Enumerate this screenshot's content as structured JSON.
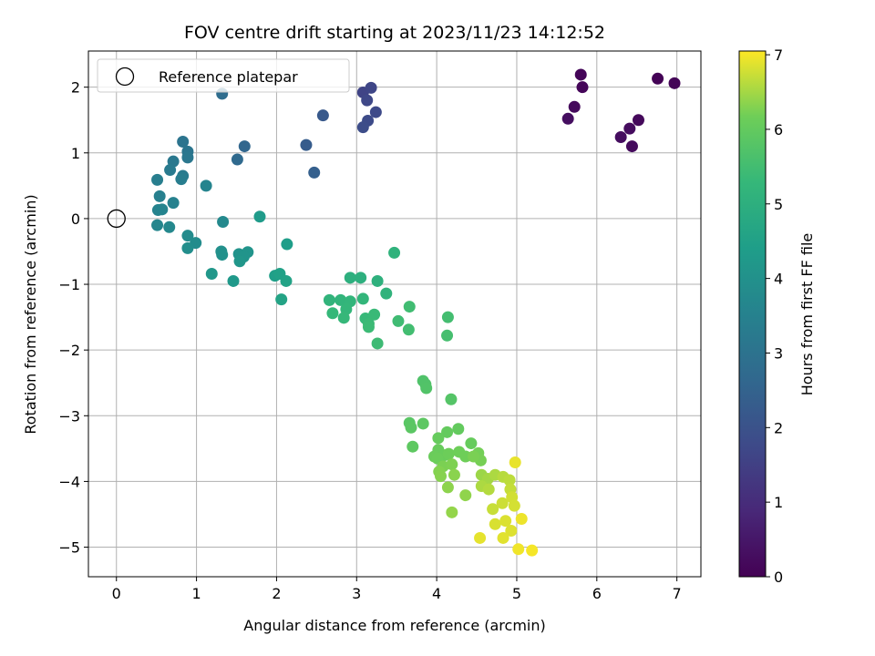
{
  "chart_data": {
    "type": "scatter",
    "title": "FOV centre drift starting at 2023/11/23 14:12:52",
    "xlabel": "Angular distance from reference (arcmin)",
    "ylabel": "Rotation from reference (arcmin)",
    "xlim": [
      -0.35,
      7.3
    ],
    "ylim": [
      -5.45,
      2.55
    ],
    "xticks": [
      0,
      1,
      2,
      3,
      4,
      5,
      6,
      7
    ],
    "yticks": [
      2,
      1,
      0,
      -1,
      -2,
      -3,
      -4,
      -5
    ],
    "xtick_labels": [
      "0",
      "1",
      "2",
      "3",
      "4",
      "5",
      "6",
      "7"
    ],
    "ytick_labels": [
      "2",
      "1",
      "0",
      "−1",
      "−2",
      "−3",
      "−4",
      "−5"
    ],
    "grid": true,
    "legend": {
      "location": "upper left",
      "label": "Reference platepar",
      "marker": "open-circle"
    },
    "reference_point": {
      "x": 0,
      "y": 0
    },
    "colorbar": {
      "label": "Hours from first FF file",
      "min": 0,
      "max": 7.05,
      "ticks": [
        0,
        1,
        2,
        3,
        4,
        5,
        6,
        7
      ],
      "tick_labels": [
        "0",
        "1",
        "2",
        "3",
        "4",
        "5",
        "6",
        "7"
      ],
      "colormap": "viridis"
    },
    "points": [
      [
        5.8,
        2.19,
        0.1
      ],
      [
        5.82,
        2.0,
        0.12
      ],
      [
        5.72,
        1.7,
        0.2
      ],
      [
        5.64,
        1.52,
        0.3
      ],
      [
        6.76,
        2.13,
        0.05
      ],
      [
        6.97,
        2.06,
        0.08
      ],
      [
        6.52,
        1.5,
        0.18
      ],
      [
        6.41,
        1.37,
        0.25
      ],
      [
        6.3,
        1.24,
        0.28
      ],
      [
        6.44,
        1.1,
        0.22
      ],
      [
        3.08,
        1.92,
        1.6
      ],
      [
        3.18,
        1.99,
        1.65
      ],
      [
        3.13,
        1.8,
        1.7
      ],
      [
        3.24,
        1.62,
        1.75
      ],
      [
        3.14,
        1.49,
        1.8
      ],
      [
        3.08,
        1.39,
        1.85
      ],
      [
        2.58,
        1.57,
        2.2
      ],
      [
        2.37,
        1.12,
        2.3
      ],
      [
        2.47,
        0.7,
        2.4
      ],
      [
        1.6,
        1.1,
        2.6
      ],
      [
        1.51,
        0.9,
        2.7
      ],
      [
        1.32,
        1.9,
        2.8
      ],
      [
        0.83,
        1.17,
        3.05
      ],
      [
        0.89,
        1.02,
        3.1
      ],
      [
        0.89,
        0.93,
        3.15
      ],
      [
        0.71,
        0.87,
        3.2
      ],
      [
        0.67,
        0.74,
        3.25
      ],
      [
        0.83,
        0.65,
        3.3
      ],
      [
        0.81,
        0.6,
        3.35
      ],
      [
        0.51,
        0.59,
        3.4
      ],
      [
        0.54,
        0.34,
        3.45
      ],
      [
        0.71,
        0.24,
        3.5
      ],
      [
        0.52,
        0.13,
        3.55
      ],
      [
        0.57,
        0.14,
        3.6
      ],
      [
        0.51,
        -0.1,
        3.65
      ],
      [
        0.66,
        -0.13,
        3.7
      ],
      [
        1.12,
        0.5,
        3.6
      ],
      [
        1.33,
        -0.05,
        3.75
      ],
      [
        0.89,
        -0.26,
        3.8
      ],
      [
        0.99,
        -0.37,
        3.85
      ],
      [
        0.89,
        -0.45,
        3.9
      ],
      [
        1.31,
        -0.5,
        3.95
      ],
      [
        1.32,
        -0.55,
        4.0
      ],
      [
        1.53,
        -0.54,
        4.05
      ],
      [
        1.64,
        -0.51,
        4.1
      ],
      [
        1.59,
        -0.58,
        4.1
      ],
      [
        1.54,
        -0.65,
        4.15
      ],
      [
        1.19,
        -0.84,
        4.2
      ],
      [
        1.46,
        -0.95,
        4.25
      ],
      [
        1.79,
        0.03,
        4.3
      ],
      [
        2.13,
        -0.39,
        4.4
      ],
      [
        1.98,
        -0.87,
        4.45
      ],
      [
        2.04,
        -0.84,
        4.5
      ],
      [
        2.12,
        -0.95,
        4.55
      ],
      [
        2.06,
        -1.23,
        4.6
      ],
      [
        2.92,
        -0.9,
        5.0
      ],
      [
        3.05,
        -0.9,
        5.02
      ],
      [
        3.26,
        -0.95,
        5.05
      ],
      [
        3.47,
        -0.52,
        5.1
      ],
      [
        3.37,
        -1.14,
        5.12
      ],
      [
        2.66,
        -1.24,
        5.15
      ],
      [
        2.8,
        -1.24,
        5.18
      ],
      [
        2.92,
        -1.26,
        5.2
      ],
      [
        3.08,
        -1.22,
        5.22
      ],
      [
        2.87,
        -1.38,
        5.25
      ],
      [
        2.7,
        -1.44,
        5.28
      ],
      [
        2.84,
        -1.51,
        5.3
      ],
      [
        3.11,
        -1.52,
        5.32
      ],
      [
        3.22,
        -1.46,
        5.35
      ],
      [
        3.15,
        -1.6,
        5.38
      ],
      [
        3.15,
        -1.65,
        5.4
      ],
      [
        3.26,
        -1.9,
        5.42
      ],
      [
        3.52,
        -1.56,
        5.45
      ],
      [
        3.66,
        -1.34,
        5.48
      ],
      [
        3.65,
        -1.69,
        5.5
      ],
      [
        4.14,
        -1.5,
        5.52
      ],
      [
        4.13,
        -1.78,
        5.55
      ],
      [
        3.83,
        -2.47,
        5.7
      ],
      [
        3.86,
        -2.52,
        5.72
      ],
      [
        3.87,
        -2.58,
        5.74
      ],
      [
        4.18,
        -2.75,
        5.78
      ],
      [
        3.66,
        -3.11,
        5.85
      ],
      [
        3.68,
        -3.18,
        5.87
      ],
      [
        3.83,
        -3.12,
        5.9
      ],
      [
        3.7,
        -3.47,
        5.92
      ],
      [
        4.27,
        -3.2,
        6.0
      ],
      [
        4.13,
        -3.25,
        6.02
      ],
      [
        4.02,
        -3.34,
        6.04
      ],
      [
        4.43,
        -3.42,
        6.05
      ],
      [
        4.02,
        -3.52,
        6.07
      ],
      [
        4.1,
        -3.6,
        6.08
      ],
      [
        3.97,
        -3.62,
        6.1
      ],
      [
        4.01,
        -3.65,
        6.12
      ],
      [
        4.15,
        -3.58,
        6.14
      ],
      [
        4.28,
        -3.55,
        6.15
      ],
      [
        4.36,
        -3.62,
        6.17
      ],
      [
        4.52,
        -3.57,
        6.2
      ],
      [
        4.55,
        -3.68,
        6.22
      ],
      [
        4.46,
        -3.62,
        6.24
      ],
      [
        4.08,
        -3.77,
        6.25
      ],
      [
        4.19,
        -3.74,
        6.27
      ],
      [
        4.03,
        -3.85,
        6.3
      ],
      [
        4.05,
        -3.92,
        6.32
      ],
      [
        4.22,
        -3.9,
        6.34
      ],
      [
        4.14,
        -4.09,
        6.36
      ],
      [
        4.36,
        -4.21,
        6.38
      ],
      [
        4.19,
        -4.47,
        6.4
      ],
      [
        4.56,
        -3.9,
        6.45
      ],
      [
        4.64,
        -3.96,
        6.5
      ],
      [
        4.73,
        -3.9,
        6.55
      ],
      [
        4.56,
        -4.07,
        6.55
      ],
      [
        4.65,
        -4.12,
        6.6
      ],
      [
        4.83,
        -3.93,
        6.62
      ],
      [
        4.91,
        -3.98,
        6.65
      ],
      [
        4.92,
        -4.12,
        6.7
      ],
      [
        4.7,
        -4.42,
        6.72
      ],
      [
        4.82,
        -4.33,
        6.75
      ],
      [
        4.94,
        -4.24,
        6.78
      ],
      [
        4.97,
        -4.37,
        6.8
      ],
      [
        4.73,
        -4.65,
        6.82
      ],
      [
        4.86,
        -4.6,
        6.84
      ],
      [
        4.93,
        -4.75,
        6.85
      ],
      [
        4.83,
        -4.86,
        6.88
      ],
      [
        4.54,
        -4.86,
        6.9
      ],
      [
        4.98,
        -3.71,
        6.92
      ],
      [
        5.06,
        -4.57,
        6.95
      ],
      [
        5.02,
        -5.03,
        6.97
      ],
      [
        5.19,
        -5.05,
        7.0
      ]
    ]
  }
}
